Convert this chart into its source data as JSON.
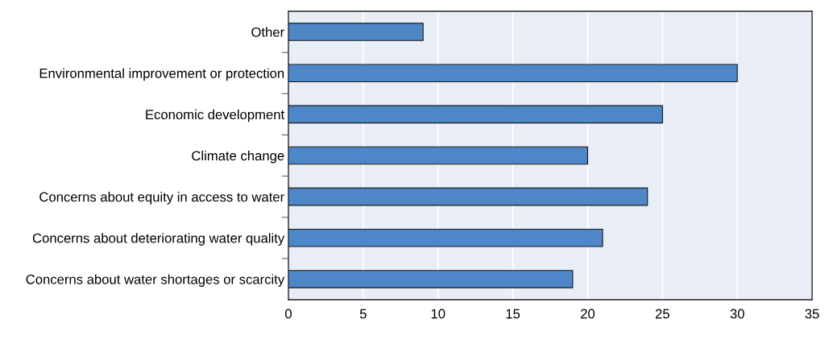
{
  "chart_data": {
    "type": "bar",
    "orientation": "horizontal",
    "categories": [
      "Other",
      "Environmental improvement or protection",
      "Economic development",
      "Climate change",
      "Concerns about equity in access to water",
      "Concerns about deteriorating water quality",
      "Concerns about water shortages or scarcity"
    ],
    "values": [
      9,
      30,
      25,
      20,
      24,
      21,
      19
    ],
    "color": "#4e87c7",
    "xlim": [
      0,
      35
    ],
    "xticks": [
      0,
      5,
      10,
      15,
      20,
      25,
      30,
      35
    ],
    "grid": "x"
  }
}
